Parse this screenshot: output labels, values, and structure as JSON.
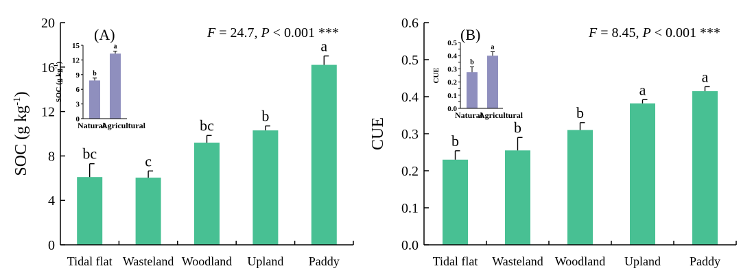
{
  "colors": {
    "main_bar": "#48c093",
    "inset_bar": "#8f8fbe",
    "axis": "#000000",
    "background": "#ffffff"
  },
  "chart_data": [
    {
      "type": "bar",
      "panel": "(A)",
      "categories": [
        "Tidal flat",
        "Wasteland",
        "Woodland",
        "Upland",
        "Paddy"
      ],
      "values": [
        6.1,
        6.05,
        9.2,
        10.3,
        16.2
      ],
      "errors": [
        1.2,
        0.6,
        0.65,
        0.4,
        0.8
      ],
      "letters": [
        "bc",
        "c",
        "bc",
        "b",
        "a"
      ],
      "ylabel_base": "SOC (g kg",
      "ylabel_exp": "-1",
      "ylabel_tail": ")",
      "xlabel": "",
      "ylim": [
        0,
        20
      ],
      "yticks": [
        0,
        4,
        8,
        12,
        16,
        20
      ],
      "ytick_labels": [
        "0",
        "4",
        "8",
        "12",
        "16",
        "20"
      ],
      "stat_F": "F",
      "stat_mid": " = 24.7, ",
      "stat_P": "P",
      "stat_tail": " < 0.001 ***",
      "inset": {
        "categories": [
          "Natural",
          "Agricultural"
        ],
        "values": [
          7.8,
          13.3
        ],
        "errors": [
          0.5,
          0.5
        ],
        "letters": [
          "b",
          "a"
        ],
        "ylabel_base": "SOC (g kg",
        "ylabel_exp": "-1",
        "ylabel_tail": ")",
        "ylim": [
          0,
          15
        ],
        "yticks": [
          0,
          3,
          6,
          9,
          12,
          15
        ],
        "ytick_labels": [
          "0",
          "3",
          "6",
          "9",
          "12",
          "15"
        ]
      }
    },
    {
      "type": "bar",
      "panel": "(B)",
      "categories": [
        "Tidal flat",
        "Wasteland",
        "Woodland",
        "Upland",
        "Paddy"
      ],
      "values": [
        0.23,
        0.255,
        0.31,
        0.382,
        0.415
      ],
      "errors": [
        0.024,
        0.035,
        0.02,
        0.01,
        0.012
      ],
      "letters": [
        "b",
        "b",
        "b",
        "a",
        "a"
      ],
      "ylabel_base": "CUE",
      "ylabel_exp": "",
      "ylabel_tail": "",
      "xlabel": "",
      "ylim": [
        0,
        0.6
      ],
      "yticks": [
        0,
        0.1,
        0.2,
        0.3,
        0.4,
        0.5,
        0.6
      ],
      "ytick_labels": [
        "0.0",
        "0.1",
        "0.2",
        "0.3",
        "0.4",
        "0.5",
        "0.6"
      ],
      "stat_F": "F",
      "stat_mid": " = 8.45, ",
      "stat_P": "P",
      "stat_tail": " < 0.001 ***",
      "inset": {
        "categories": [
          "Natural",
          "Agricultural"
        ],
        "values": [
          0.275,
          0.4
        ],
        "errors": [
          0.04,
          0.03
        ],
        "letters": [
          "b",
          "a"
        ],
        "ylabel_base": "CUE",
        "ylabel_exp": "",
        "ylabel_tail": "",
        "ylim": [
          0,
          0.5
        ],
        "yticks": [
          0,
          0.05,
          0.1,
          0.15,
          0.2,
          0.25,
          0.3,
          0.35,
          0.4,
          0.45,
          0.5
        ],
        "ytick_labels": [
          "0.0",
          "",
          "0.1",
          "",
          "0.2",
          "",
          "0.3",
          "",
          "0.4",
          "",
          "0.5"
        ]
      }
    }
  ]
}
